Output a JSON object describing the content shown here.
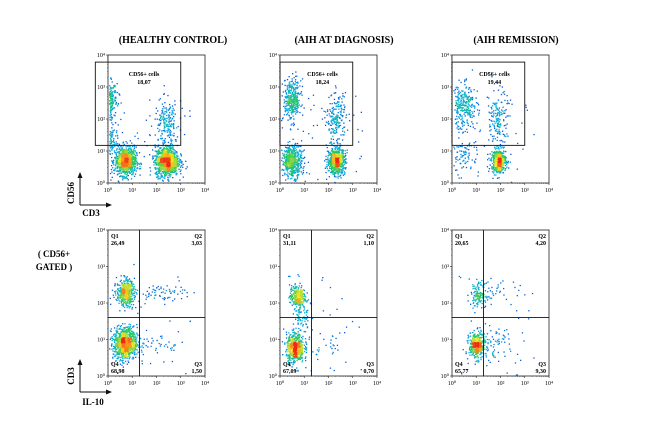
{
  "figure": {
    "column_titles": [
      "(HEALTHY CONTROL)",
      "(AIH AT DIAGNOSIS)",
      "(AIH REMISSION)"
    ],
    "row2_label_line1": "( CD56+",
    "row2_label_line2": "GATED )",
    "top_axis_y": "CD56",
    "top_axis_x": "CD3",
    "bottom_axis_y": "CD3",
    "bottom_axis_x": "IL-10",
    "tick_labels": [
      "10⁰",
      "10¹",
      "10²",
      "10³",
      "10⁴"
    ]
  },
  "chart_data": [
    {
      "type": "scatter",
      "subtype": "flow-cytometry-density",
      "title": "(HEALTHY CONTROL)",
      "xlabel": "CD3",
      "ylabel": "CD56",
      "scale": "log",
      "xlim": [
        1,
        10000
      ],
      "ylim": [
        1,
        10000
      ],
      "gate_label": "CD56+ cells",
      "gate_value": "18,07",
      "gate_x": [
        0.3,
        1000
      ],
      "gate_y": [
        15,
        6000
      ],
      "populations": [
        {
          "x": 0.8,
          "y": 400,
          "sx": 0.22,
          "sy": 0.3,
          "n": 500
        },
        {
          "x": 0.6,
          "y": 25,
          "sx": 0.25,
          "sy": 0.25,
          "n": 350
        },
        {
          "x": 5,
          "y": 5,
          "sx": 0.22,
          "sy": 0.22,
          "n": 900
        },
        {
          "x": 250,
          "y": 5,
          "sx": 0.24,
          "sy": 0.23,
          "n": 1100
        },
        {
          "x": 250,
          "y": 80,
          "sx": 0.25,
          "sy": 0.35,
          "n": 180
        }
      ]
    },
    {
      "type": "scatter",
      "subtype": "flow-cytometry-density",
      "title": "(AIH AT DIAGNOSIS)",
      "xlabel": "CD3",
      "ylabel": "CD56",
      "scale": "log",
      "xlim": [
        1,
        10000
      ],
      "ylim": [
        1,
        10000
      ],
      "gate_label": "CD56+ cells",
      "gate_value": "18,24",
      "gate_x": [
        1,
        1000
      ],
      "gate_y": [
        15,
        6000
      ],
      "populations": [
        {
          "x": 3,
          "y": 400,
          "sx": 0.18,
          "sy": 0.32,
          "n": 350
        },
        {
          "x": 3,
          "y": 5,
          "sx": 0.2,
          "sy": 0.25,
          "n": 500
        },
        {
          "x": 200,
          "y": 5,
          "sx": 0.18,
          "sy": 0.2,
          "n": 650
        },
        {
          "x": 200,
          "y": 100,
          "sx": 0.2,
          "sy": 0.4,
          "n": 200
        }
      ]
    },
    {
      "type": "scatter",
      "subtype": "flow-cytometry-density",
      "title": "(AIH REMISSION)",
      "xlabel": "CD3",
      "ylabel": "CD56",
      "scale": "log",
      "xlim": [
        1,
        10000
      ],
      "ylim": [
        1,
        10000
      ],
      "gate_label": "CD56+ cells",
      "gate_value": "19,44",
      "gate_x": [
        1,
        1000
      ],
      "gate_y": [
        15,
        6000
      ],
      "populations": [
        {
          "x": 3,
          "y": 250,
          "sx": 0.28,
          "sy": 0.35,
          "n": 280
        },
        {
          "x": 80,
          "y": 5,
          "sx": 0.15,
          "sy": 0.18,
          "n": 500
        },
        {
          "x": 80,
          "y": 100,
          "sx": 0.18,
          "sy": 0.45,
          "n": 160
        },
        {
          "x": 3,
          "y": 8,
          "sx": 0.3,
          "sy": 0.3,
          "n": 90
        }
      ]
    },
    {
      "type": "scatter",
      "subtype": "flow-cytometry-quadrant",
      "gated_on": "CD56+",
      "xlabel": "IL-10",
      "ylabel": "CD3",
      "scale": "log",
      "xlim": [
        1,
        10000
      ],
      "ylim": [
        1,
        10000
      ],
      "quadrant_x": 20,
      "quadrant_y": 40,
      "quadrants": {
        "Q1": "26,49",
        "Q2": "3,03",
        "Q3": "1,50",
        "Q4": "68,98"
      },
      "populations": [
        {
          "x": 5,
          "y": 200,
          "sx": 0.18,
          "sy": 0.18,
          "n": 450
        },
        {
          "x": 5,
          "y": 8,
          "sx": 0.24,
          "sy": 0.22,
          "n": 900
        },
        {
          "x": 120,
          "y": 200,
          "sx": 0.55,
          "sy": 0.1,
          "n": 60
        },
        {
          "x": 100,
          "y": 8,
          "sx": 0.55,
          "sy": 0.12,
          "n": 40
        }
      ]
    },
    {
      "type": "scatter",
      "subtype": "flow-cytometry-quadrant",
      "gated_on": "CD56+",
      "xlabel": "IL-10",
      "ylabel": "CD3",
      "scale": "log",
      "xlim": [
        1,
        10000
      ],
      "ylim": [
        1,
        10000
      ],
      "quadrant_x": 20,
      "quadrant_y": 40,
      "quadrants": {
        "Q1": "31,11",
        "Q2": "1,10",
        "Q3": "0,70",
        "Q4": "67,09"
      },
      "populations": [
        {
          "x": 5,
          "y": 150,
          "sx": 0.16,
          "sy": 0.16,
          "n": 280
        },
        {
          "x": 4,
          "y": 6,
          "sx": 0.18,
          "sy": 0.2,
          "n": 550
        },
        {
          "x": 8,
          "y": 30,
          "sx": 0.18,
          "sy": 0.3,
          "n": 60
        },
        {
          "x": 80,
          "y": 8,
          "sx": 0.4,
          "sy": 0.15,
          "n": 18
        }
      ]
    },
    {
      "type": "scatter",
      "subtype": "flow-cytometry-quadrant",
      "gated_on": "CD56+",
      "xlabel": "IL-10",
      "ylabel": "CD3",
      "scale": "log",
      "xlim": [
        1,
        10000
      ],
      "ylim": [
        1,
        10000
      ],
      "quadrant_x": 20,
      "quadrant_y": 40,
      "quadrants": {
        "Q1": "20,65",
        "Q2": "4,20",
        "Q3": "9,30",
        "Q4": "65,77"
      },
      "populations": [
        {
          "x": 12,
          "y": 180,
          "sx": 0.16,
          "sy": 0.16,
          "n": 120
        },
        {
          "x": 10,
          "y": 7,
          "sx": 0.16,
          "sy": 0.18,
          "n": 380
        },
        {
          "x": 50,
          "y": 8,
          "sx": 0.35,
          "sy": 0.2,
          "n": 70
        },
        {
          "x": 50,
          "y": 200,
          "sx": 0.4,
          "sy": 0.12,
          "n": 30
        }
      ]
    }
  ]
}
